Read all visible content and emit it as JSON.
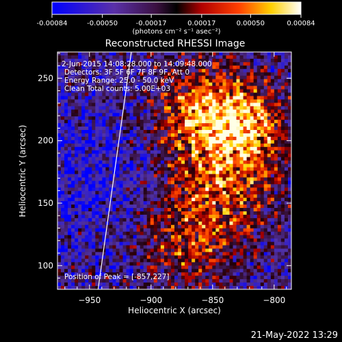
{
  "colorbar": {
    "tick_labels": [
      "-0.00084",
      "-0.00050",
      "-0.00017",
      "0.00017",
      "0.00050",
      "0.00084"
    ],
    "tick_values": [
      -0.00084,
      -0.0005,
      -0.00017,
      0.00017,
      0.0005,
      0.00084
    ],
    "range": [
      -0.00084,
      0.00084
    ],
    "unit_label": "(photons cm⁻² s⁻¹ asec⁻²)"
  },
  "chart_data": {
    "type": "heatmap",
    "title": "Reconstructed RHESSI Image",
    "xlabel": "Heliocentric X (arcsec)",
    "ylabel": "Heliocentric Y (arcsec)",
    "xlim": [
      -976,
      -786
    ],
    "ylim": [
      81,
      271
    ],
    "x_ticks": [
      -950,
      -900,
      -850,
      -800
    ],
    "x_tick_labels": [
      "−950",
      "−900",
      "−850",
      "−800"
    ],
    "y_ticks": [
      100,
      150,
      200,
      250
    ],
    "y_tick_labels": [
      "100",
      "150",
      "200",
      "250"
    ],
    "colormap": "blue-purple-red-yellow-white",
    "limb_line": [
      [
        -943,
        81
      ],
      [
        -916,
        271
      ]
    ],
    "peak_position": [
      -857,
      227
    ],
    "annotations": [
      "2-Jun-2015 14:08:28.000 to 14:09:48.000",
      "Detectors: 3F 5F 6F 7F 8F 9F, Att 0",
      "Energy Range: 25.0 - 50.0 keV",
      "Clean   Total counts: 5.00E+03",
      "Position of Peak = [-857,227]"
    ]
  },
  "footer": {
    "timestamp": "21-May-2022 13:29"
  }
}
